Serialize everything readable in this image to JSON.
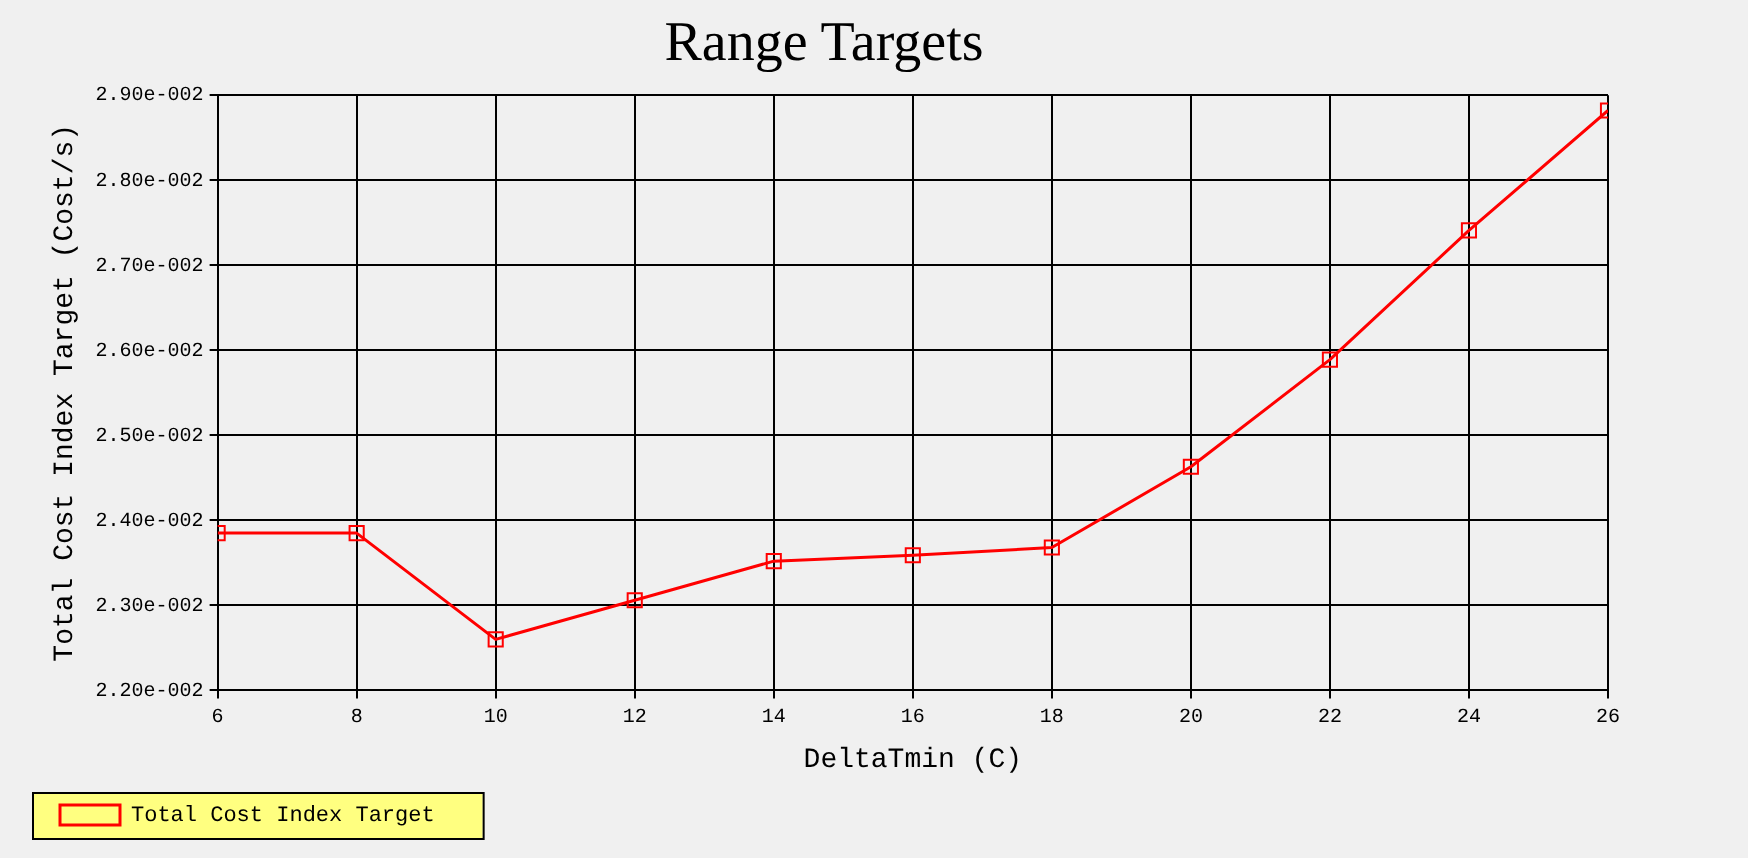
{
  "chart_data": {
    "type": "line",
    "title": "Range Targets",
    "xlabel": "DeltaTmin (C)",
    "ylabel": "Total Cost Index Target (Cost/s)",
    "x": [
      6,
      8,
      10,
      12,
      14,
      16,
      18,
      20,
      22,
      24,
      26
    ],
    "series": [
      {
        "name": "Total Cost Index Target",
        "color": "#ff0000",
        "values": [
          0.02385,
          0.02385,
          0.0226,
          0.02306,
          0.02352,
          0.02359,
          0.02368,
          0.02463,
          0.02589,
          0.02741,
          0.02882
        ]
      }
    ],
    "xlim": [
      6,
      26
    ],
    "xticks": [
      6,
      8,
      10,
      12,
      14,
      16,
      18,
      20,
      22,
      24,
      26
    ],
    "ylim": [
      0.022,
      0.029
    ],
    "yticks": [
      {
        "value": 0.022,
        "label": "2.20e-002"
      },
      {
        "value": 0.023,
        "label": "2.30e-002"
      },
      {
        "value": 0.024,
        "label": "2.40e-002"
      },
      {
        "value": 0.025,
        "label": "2.50e-002"
      },
      {
        "value": 0.026,
        "label": "2.60e-002"
      },
      {
        "value": 0.027,
        "label": "2.70e-002"
      },
      {
        "value": 0.028,
        "label": "2.80e-002"
      },
      {
        "value": 0.029,
        "label": "2.90e-002"
      }
    ],
    "grid": true,
    "legend": "bottom left",
    "marker": "square",
    "line_style": "solid"
  }
}
